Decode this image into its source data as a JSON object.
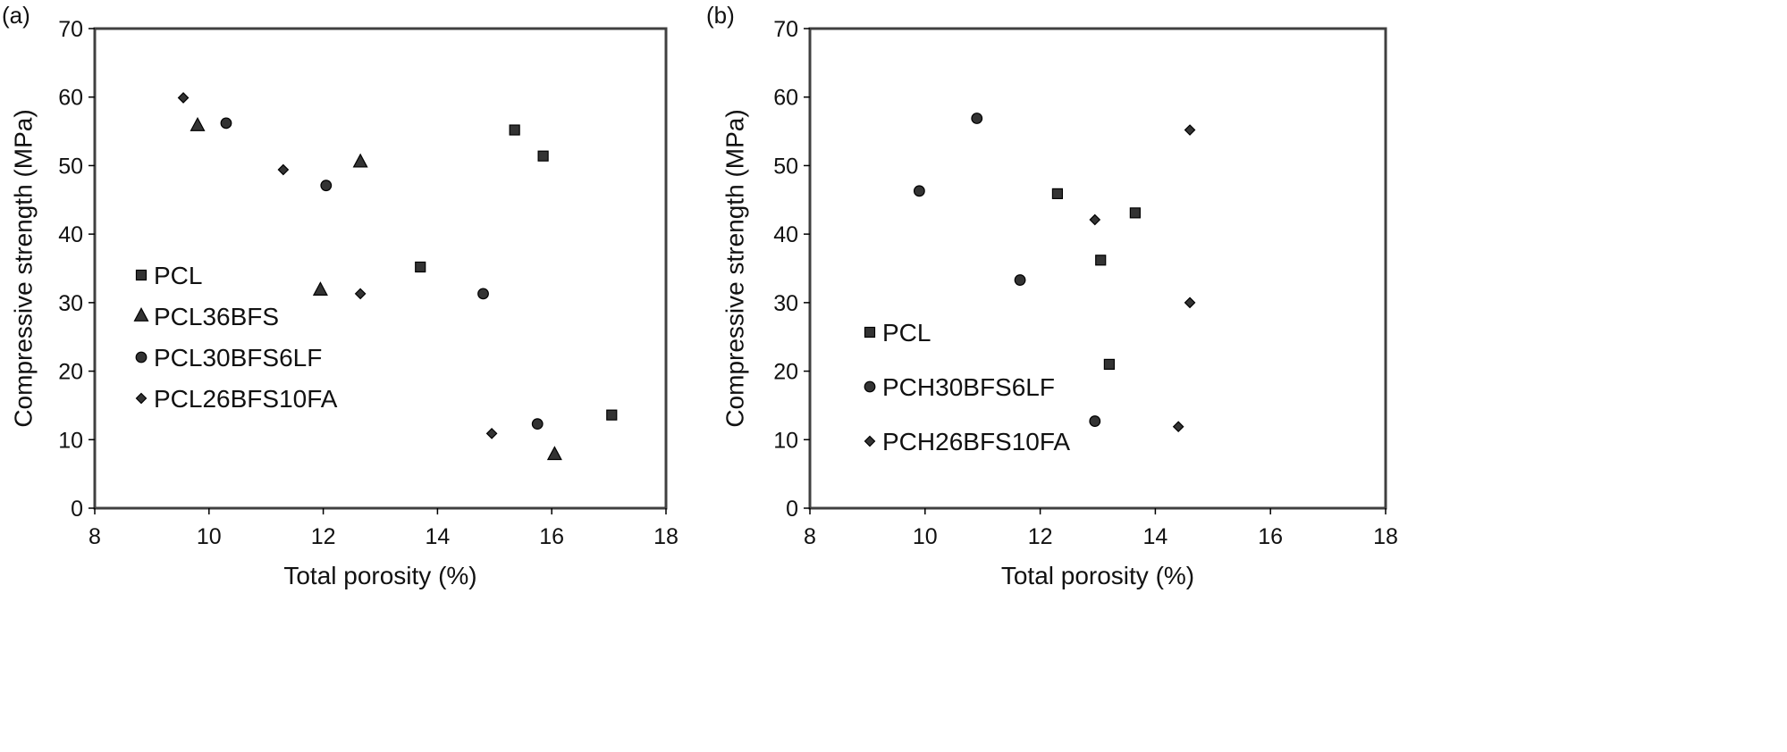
{
  "colors": {
    "frame": "#404040",
    "marker": "#333333",
    "background": "#ffffff"
  },
  "chart_data": [
    {
      "type": "scatter",
      "panel_label": "(a)",
      "xlabel": "Total porosity (%)",
      "ylabel": "Compressive strength (MPa)",
      "xlim": [
        8,
        18
      ],
      "ylim": [
        0,
        70
      ],
      "xticks": [
        "8",
        "10",
        "12",
        "14",
        "16",
        "18"
      ],
      "yticks": [
        "0",
        "10",
        "20",
        "30",
        "40",
        "50",
        "60",
        "70"
      ],
      "grid": false,
      "legend_position": "left",
      "series": [
        {
          "name": "PCL",
          "marker": "square",
          "points": [
            [
              15.35,
              55.2
            ],
            [
              15.85,
              51.4
            ],
            [
              13.7,
              35.2
            ],
            [
              17.05,
              13.6
            ]
          ]
        },
        {
          "name": "PCL36BFS",
          "marker": "triangle",
          "points": [
            [
              9.8,
              55.8
            ],
            [
              12.65,
              50.5
            ],
            [
              11.95,
              31.8
            ],
            [
              16.05,
              7.8
            ]
          ]
        },
        {
          "name": "PCL30BFS6LF",
          "marker": "circle",
          "points": [
            [
              10.3,
              56.2
            ],
            [
              12.05,
              47.1
            ],
            [
              14.8,
              31.3
            ],
            [
              15.75,
              12.3
            ]
          ]
        },
        {
          "name": "PCL26BFS10FA",
          "marker": "diamond",
          "points": [
            [
              9.55,
              59.9
            ],
            [
              11.3,
              49.4
            ],
            [
              12.65,
              31.3
            ],
            [
              14.95,
              10.9
            ]
          ]
        }
      ]
    },
    {
      "type": "scatter",
      "panel_label": "(b)",
      "xlabel": "Total porosity (%)",
      "ylabel": "Compressive strength (MPa)",
      "xlim": [
        8,
        18
      ],
      "ylim": [
        0,
        70
      ],
      "xticks": [
        "8",
        "10",
        "12",
        "14",
        "16",
        "18"
      ],
      "yticks": [
        "0",
        "10",
        "20",
        "30",
        "40",
        "50",
        "60",
        "70"
      ],
      "grid": false,
      "legend_position": "bottom-left",
      "series": [
        {
          "name": "PCL",
          "marker": "square",
          "points": [
            [
              12.3,
              45.9
            ],
            [
              13.65,
              43.1
            ],
            [
              13.05,
              36.2
            ],
            [
              13.2,
              21.0
            ]
          ]
        },
        {
          "name": "PCH30BFS6LF",
          "marker": "circle",
          "points": [
            [
              10.9,
              56.9
            ],
            [
              9.9,
              46.3
            ],
            [
              11.65,
              33.3
            ],
            [
              12.95,
              12.7
            ]
          ]
        },
        {
          "name": "PCH26BFS10FA",
          "marker": "diamond",
          "points": [
            [
              14.6,
              55.2
            ],
            [
              12.95,
              42.1
            ],
            [
              14.6,
              30.0
            ],
            [
              14.4,
              11.9
            ]
          ]
        }
      ]
    }
  ]
}
